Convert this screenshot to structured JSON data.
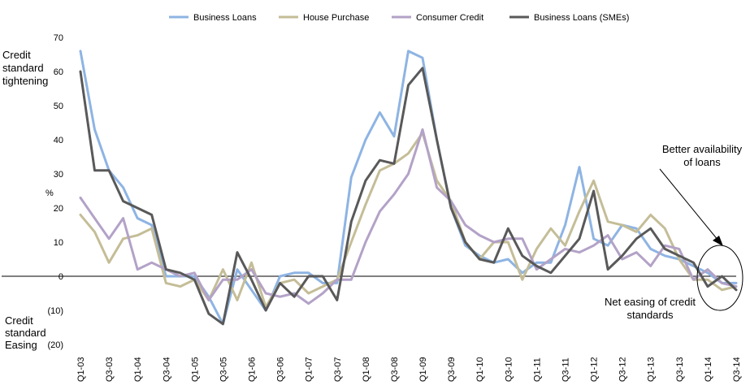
{
  "chart_data": {
    "type": "line",
    "title": "",
    "ylabel": "%",
    "xlabel": "",
    "ylim": [
      -20,
      70
    ],
    "yticks": [
      70,
      60,
      50,
      40,
      30,
      20,
      10,
      0,
      -10,
      -20
    ],
    "ytick_labels": [
      "70",
      "60",
      "50",
      "40",
      "30",
      "20",
      "10",
      "0",
      "(10)",
      "(20)"
    ],
    "grid": false,
    "legend": "top",
    "categories": [
      "Q1-03",
      "Q2-03",
      "Q3-03",
      "Q4-03",
      "Q1-04",
      "Q2-04",
      "Q3-04",
      "Q4-04",
      "Q1-05",
      "Q2-05",
      "Q3-05",
      "Q4-05",
      "Q1-06",
      "Q2-06",
      "Q3-06",
      "Q4-06",
      "Q1-07",
      "Q2-07",
      "Q3-07",
      "Q4-07",
      "Q1-08",
      "Q2-08",
      "Q3-08",
      "Q4-08",
      "Q1-09",
      "Q2-09",
      "Q3-09",
      "Q4-09",
      "Q1-10",
      "Q2-10",
      "Q3-10",
      "Q4-10",
      "Q1-11",
      "Q2-11",
      "Q3-11",
      "Q4-11",
      "Q1-12",
      "Q2-12",
      "Q3-12",
      "Q4-12",
      "Q1-13",
      "Q2-13",
      "Q3-13",
      "Q4-13",
      "Q1-14",
      "Q2-14",
      "Q3-14"
    ],
    "xtick_labels": [
      "Q1-03",
      "Q3-03",
      "Q1-04",
      "Q3-04",
      "Q1-05",
      "Q3-05",
      "Q1-06",
      "Q3-06",
      "Q1-07",
      "Q3-07",
      "Q1-08",
      "Q3-08",
      "Q1-09",
      "Q3-09",
      "Q1-10",
      "Q3-10",
      "Q1-11",
      "Q3-11",
      "Q1-12",
      "Q3-12",
      "Q1-13",
      "Q3-13",
      "Q1-14",
      "Q3-14"
    ],
    "series": [
      {
        "name": "Business Loans",
        "color": "#8EB4E3",
        "values": [
          66,
          43,
          31,
          26,
          17,
          15,
          0,
          0,
          0,
          -6,
          -14,
          2,
          -4,
          -10,
          0,
          1,
          1,
          -2,
          -2,
          29,
          40,
          48,
          41,
          66,
          64,
          40,
          20,
          9,
          6,
          4,
          5,
          1,
          4,
          4,
          15,
          32,
          11,
          9,
          15,
          14,
          8,
          6,
          5,
          3,
          1,
          -2,
          -2
        ]
      },
      {
        "name": "House Purchase",
        "color": "#C4BD97",
        "values": [
          18,
          13,
          4,
          11,
          12,
          14,
          -2,
          -3,
          -1,
          -7,
          2,
          -7,
          4,
          -9,
          -2,
          -1,
          -5,
          -3,
          -1,
          10,
          21,
          31,
          33,
          36,
          42,
          28,
          22,
          10,
          5,
          10,
          10,
          -1,
          8,
          14,
          9,
          19,
          28,
          16,
          15,
          13,
          18,
          14,
          5,
          -1,
          -1,
          -4,
          -3
        ]
      },
      {
        "name": "Consumer Credit",
        "color": "#B3A2C7",
        "values": [
          23,
          17,
          11,
          17,
          2,
          4,
          2,
          0,
          1,
          -7,
          -1,
          -1,
          2,
          -5,
          -6,
          -5,
          -8,
          -5,
          -1,
          -1,
          10,
          19,
          24,
          30,
          43,
          26,
          22,
          15,
          12,
          10,
          11,
          11,
          2,
          5,
          8,
          7,
          9,
          12,
          5,
          7,
          3,
          9,
          8,
          -1,
          2,
          -2,
          -3
        ]
      },
      {
        "name": "Business Loans (SMEs)",
        "color": "#595959",
        "values": [
          60,
          31,
          31,
          22,
          20,
          18,
          2,
          1,
          -1,
          -11,
          -14,
          7,
          -1,
          -10,
          -2,
          -6,
          0,
          0,
          -7,
          16,
          28,
          34,
          33,
          56,
          61,
          40,
          20,
          10,
          5,
          4,
          14,
          6,
          3,
          1,
          6,
          11,
          25,
          2,
          6,
          11,
          14,
          8,
          6,
          4,
          -3,
          0,
          -4
        ]
      }
    ],
    "annotations": {
      "tightening": [
        "Credit",
        "standard",
        "tightening"
      ],
      "easing": [
        "Credit",
        "standard",
        "Easing"
      ],
      "better": [
        "Better availability",
        "of loans"
      ],
      "net_easing": [
        "Net easing of credit",
        "standards"
      ]
    }
  }
}
